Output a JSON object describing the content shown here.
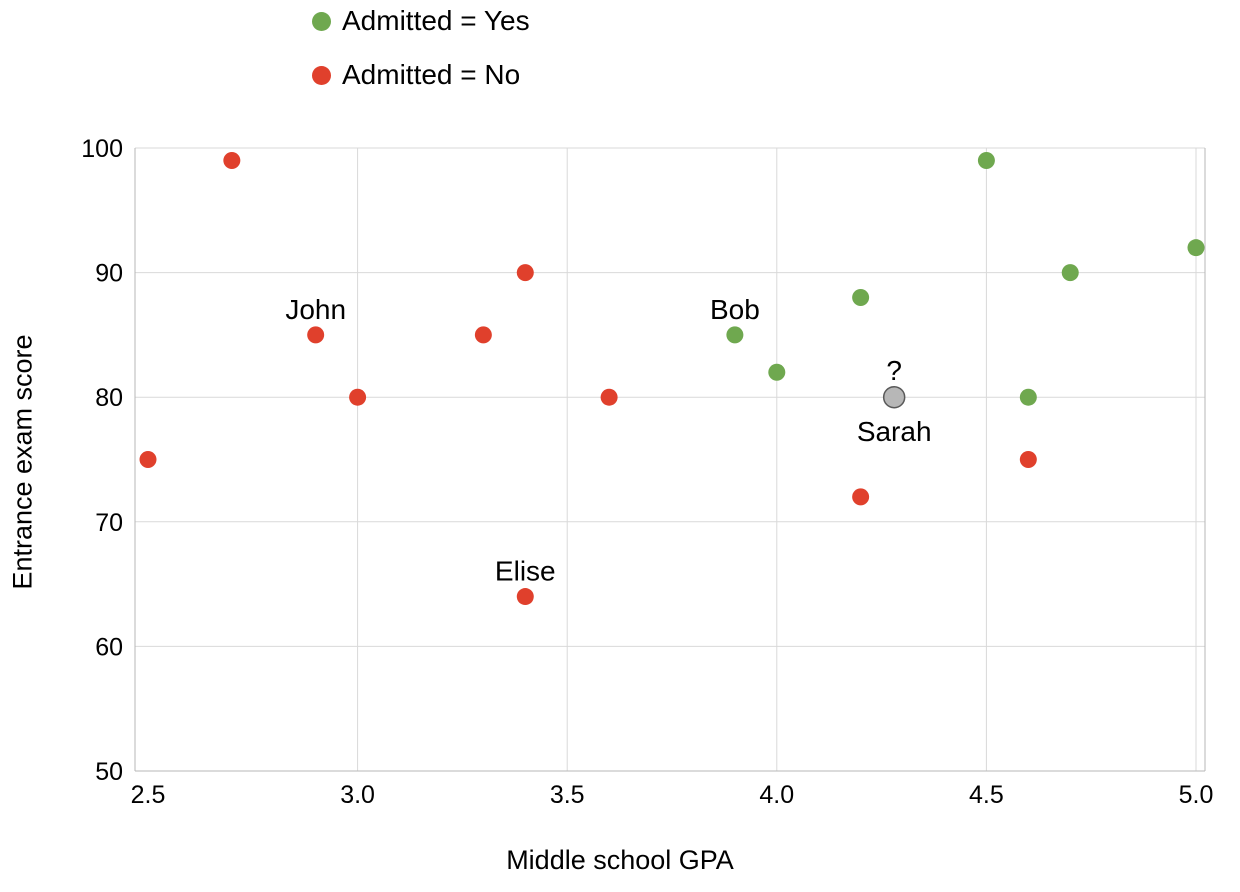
{
  "chart_data": {
    "type": "scatter",
    "title": "",
    "xlabel": "Middle school GPA",
    "ylabel": "Entrance exam score",
    "xlim": [
      2.5,
      5.0
    ],
    "ylim": [
      50,
      100
    ],
    "xticks": [
      2.5,
      3.0,
      3.5,
      4.0,
      4.5,
      5.0
    ],
    "xtick_labels": [
      "2.5",
      "3.0",
      "3.5",
      "4.0",
      "4.5",
      "5.0"
    ],
    "yticks": [
      50,
      60,
      70,
      80,
      90,
      100
    ],
    "ytick_labels": [
      "50",
      "60",
      "70",
      "80",
      "90",
      "100"
    ],
    "grid": true,
    "legend_position": "top-left",
    "colors": {
      "grid": "#d9d9d9",
      "axis": "#b7b7b7",
      "text": "#000000"
    },
    "legend": [
      {
        "label": "Admitted = Yes",
        "color": "#6fa84f"
      },
      {
        "label": "Admitted = No",
        "color": "#e0402c"
      }
    ],
    "series": [
      {
        "name": "Admitted = Yes",
        "color": "#6fa84f",
        "radius": 8.5,
        "points": [
          {
            "x": 3.9,
            "y": 85,
            "label": "Bob",
            "label_pos": "above"
          },
          {
            "x": 4.0,
            "y": 82
          },
          {
            "x": 4.2,
            "y": 88
          },
          {
            "x": 4.5,
            "y": 99
          },
          {
            "x": 4.6,
            "y": 80
          },
          {
            "x": 4.7,
            "y": 90
          },
          {
            "x": 5.0,
            "y": 92
          }
        ]
      },
      {
        "name": "Admitted = No",
        "color": "#e0402c",
        "radius": 8.5,
        "points": [
          {
            "x": 2.5,
            "y": 75
          },
          {
            "x": 2.7,
            "y": 99
          },
          {
            "x": 2.9,
            "y": 85,
            "label": "John",
            "label_pos": "above"
          },
          {
            "x": 3.0,
            "y": 80
          },
          {
            "x": 3.3,
            "y": 85
          },
          {
            "x": 3.4,
            "y": 90
          },
          {
            "x": 3.4,
            "y": 64,
            "label": "Elise",
            "label_pos": "above"
          },
          {
            "x": 3.6,
            "y": 80
          },
          {
            "x": 4.2,
            "y": 72
          },
          {
            "x": 4.6,
            "y": 75
          }
        ]
      },
      {
        "name": "Sarah",
        "color": "#b7b7b7",
        "stroke": "#595959",
        "radius": 10.5,
        "points": [
          {
            "x": 4.28,
            "y": 80,
            "label": "Sarah",
            "label_pos": "below",
            "label2": "?",
            "label2_pos": "above"
          }
        ]
      }
    ]
  }
}
